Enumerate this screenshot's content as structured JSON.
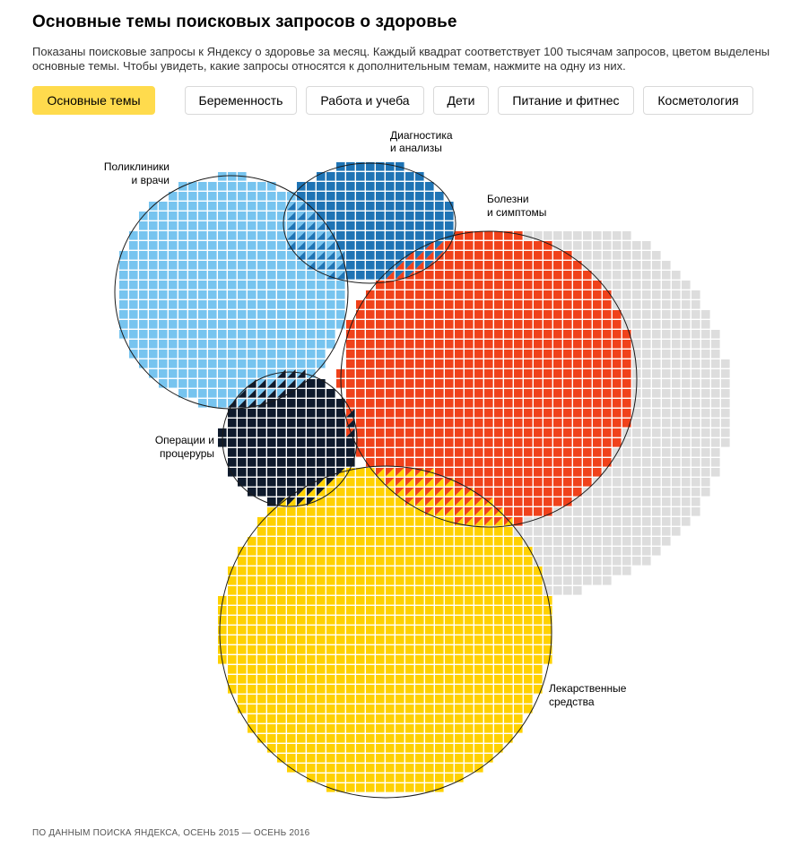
{
  "header": {
    "title": "Основные темы поисковых запросов о здоровье",
    "description": "Показаны поисковые запросы к Яндексу о здоровье за месяц. Каждый квадрат соответствует 100 тысячам запросов, цветом выделены основные темы. Чтобы увидеть, какие запросы относятся к дополнительным темам, нажмите на одну из них."
  },
  "tabs": [
    {
      "label": "Основные темы",
      "active": true
    },
    {
      "label": "Беременность",
      "active": false
    },
    {
      "label": "Работа и учеба",
      "active": false
    },
    {
      "label": "Дети",
      "active": false
    },
    {
      "label": "Питание и фитнес",
      "active": false
    },
    {
      "label": "Косметология",
      "active": false
    }
  ],
  "chart_data": {
    "type": "bubble-waffle",
    "unit": "1 квадрат = 100 тысяч запросов",
    "colors": {
      "polyclinics": "#77c4ef",
      "diagnostics": "#1f74b5",
      "diseases": "#f0421b",
      "operations": "#0e1a2c",
      "drugs": "#ffd100",
      "other": "#dddddd"
    },
    "topics": [
      {
        "key": "polyclinics",
        "label": [
          "Поликлиники",
          "и врачи"
        ]
      },
      {
        "key": "diagnostics",
        "label": [
          "Диагностика",
          "и анализы"
        ]
      },
      {
        "key": "diseases",
        "label": [
          "Болезни",
          "и симптомы"
        ]
      },
      {
        "key": "operations",
        "label": [
          "Операции и",
          "процеруры"
        ]
      },
      {
        "key": "drugs",
        "label": [
          "Лекарственные",
          "средства"
        ]
      }
    ]
  },
  "footer": {
    "source": "ПО ДАННЫМ ПОИСКА ЯНДЕКСА, ОСЕНЬ 2015 — ОСЕНЬ 2016"
  }
}
